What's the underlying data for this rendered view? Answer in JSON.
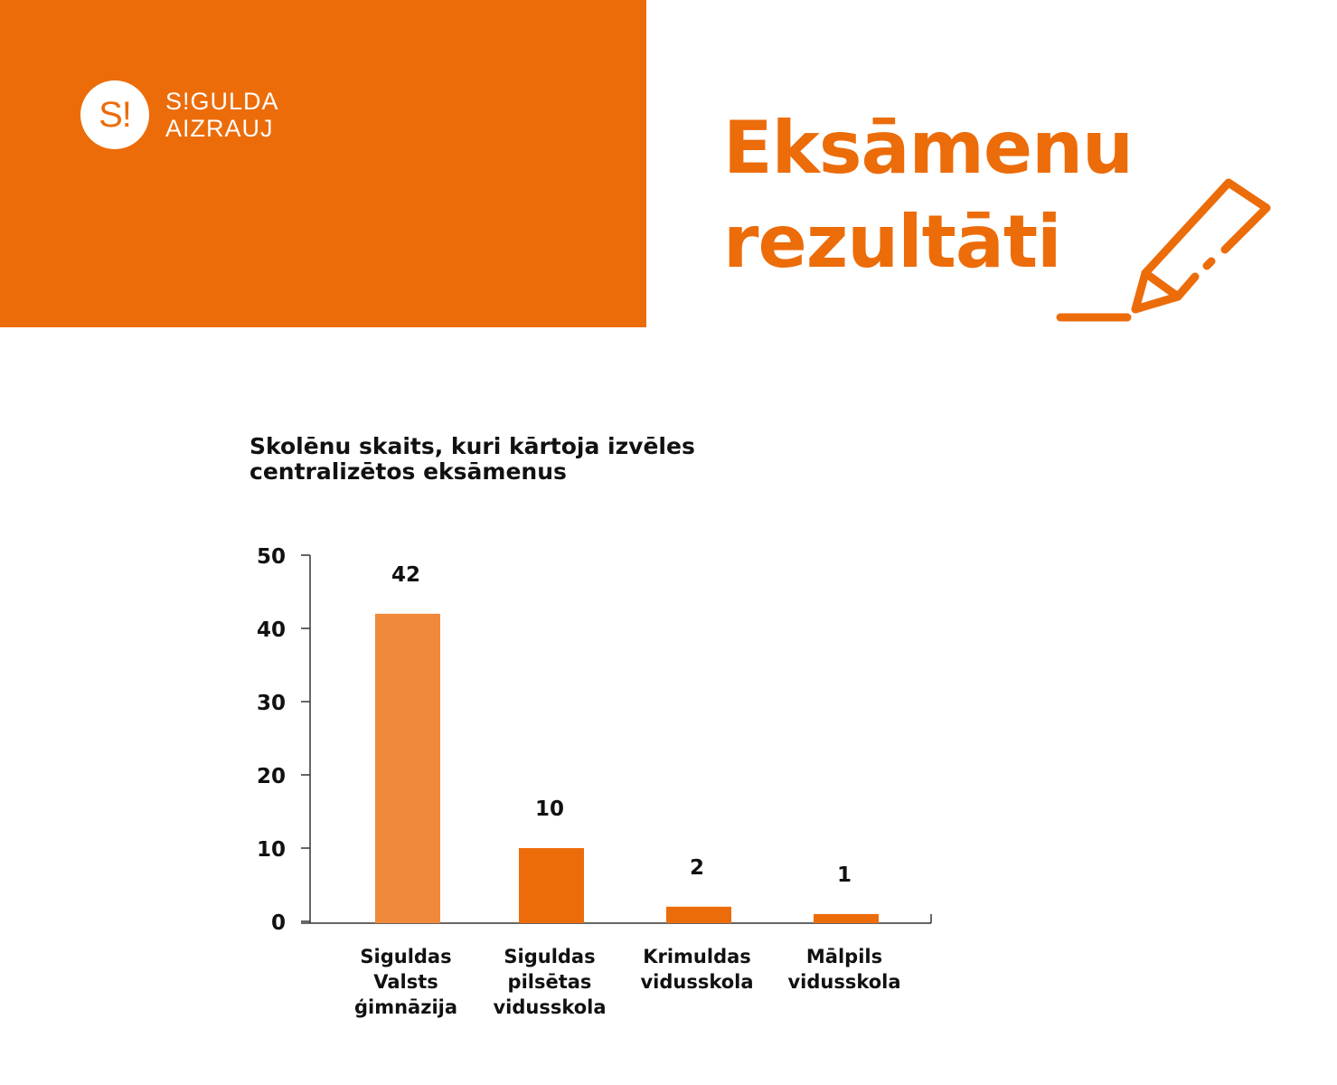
{
  "brand": {
    "logo_mark": "S!",
    "logo_line1": "S!GULDA",
    "logo_line2": "AIZRAUJ",
    "accent_color": "#ec6c0a"
  },
  "header": {
    "title_line1": "Eksāmenu",
    "title_line2": "rezultāti",
    "icon": "pencil-icon"
  },
  "chart_data": {
    "type": "bar",
    "title_line1": "Skolēnu skaits, kuri kārtoja izvēles",
    "title_line2": "centralizētos eksāmenus",
    "categories": [
      "Siguldas\nValsts\nģimnāzija",
      "Siguldas\npilsētas\nvidusskola",
      "Krimuldas\nvidusskola",
      "Mālpils\nvidusskola"
    ],
    "values": [
      42,
      10,
      2,
      1
    ],
    "value_labels": [
      "42",
      "10",
      "2",
      "1"
    ],
    "bar_colors": [
      "#f0893a",
      "#ec6c0a",
      "#ec6c0a",
      "#ec6c0a"
    ],
    "ylim": [
      0,
      50
    ],
    "yticks": [
      0,
      10,
      20,
      30,
      40,
      50
    ],
    "grid": false,
    "legend": "none"
  }
}
